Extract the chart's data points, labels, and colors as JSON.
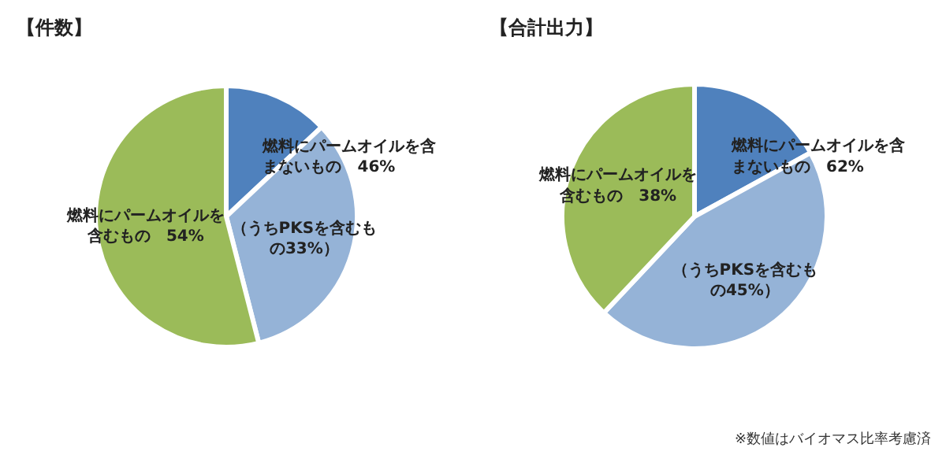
{
  "chart_data": [
    {
      "type": "pie",
      "title": "【件数】",
      "categories": [
        null,
        "（うちPKSを含むもの33%）",
        "燃料にパームオイルを含むもの　54%"
      ],
      "values": [
        13,
        33,
        54
      ],
      "colors": [
        "#4f81bd",
        "#95b3d7",
        "#9bbb59"
      ],
      "annotations": [
        "燃料にパームオイルを含まないもの　46%"
      ]
    },
    {
      "type": "pie",
      "title": "【合計出力】",
      "categories": [
        null,
        "（うちPKSを含むもの45%）",
        "燃料にパームオイルを含むもの　38%"
      ],
      "values": [
        17,
        45,
        38
      ],
      "colors": [
        "#4f81bd",
        "#95b3d7",
        "#9bbb59"
      ],
      "annotations": [
        "燃料にパームオイルを含まないもの　62%",
        "※数値はバイオマス比率考慮済"
      ]
    }
  ]
}
